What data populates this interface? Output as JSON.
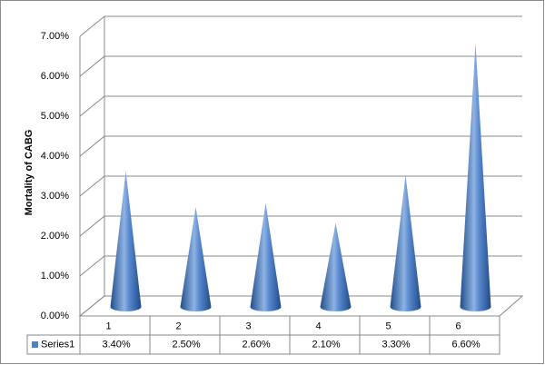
{
  "chart_data": {
    "type": "cone",
    "y_axis_label": "Mortality of CABG",
    "categories": [
      "1",
      "2",
      "3",
      "4",
      "5",
      "6"
    ],
    "series": [
      {
        "name": "Series1",
        "color": "#4f81bd",
        "values": [
          3.4,
          2.5,
          2.6,
          2.1,
          3.3,
          6.6
        ],
        "value_labels": [
          "3.40%",
          "2.50%",
          "2.60%",
          "2.10%",
          "3.30%",
          "6.60%"
        ]
      }
    ],
    "ylim": [
      0,
      7
    ],
    "yticks": [
      {
        "value": 0,
        "label": "0.00%"
      },
      {
        "value": 1,
        "label": "1.00%"
      },
      {
        "value": 2,
        "label": "2.00%"
      },
      {
        "value": 3,
        "label": "3.00%"
      },
      {
        "value": 4,
        "label": "4.00%"
      },
      {
        "value": 5,
        "label": "5.00%"
      },
      {
        "value": 6,
        "label": "6.00%"
      },
      {
        "value": 7,
        "label": "7.00%"
      }
    ],
    "grid": true,
    "data_table": true
  }
}
